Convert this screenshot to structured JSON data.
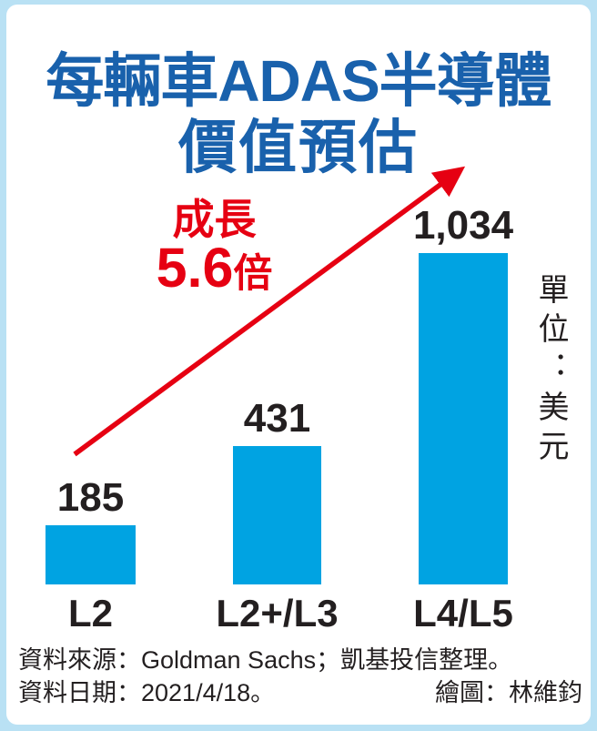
{
  "page": {
    "title_line1": "每輛車ADAS半導體",
    "title_line2": "價值預估"
  },
  "chart_data": {
    "type": "bar",
    "title": "每輛車ADAS半導體價值預估",
    "categories": [
      "L2",
      "L2+/L3",
      "L4/L5"
    ],
    "values": [
      185,
      431,
      1034
    ],
    "value_labels": [
      "185",
      "431",
      "1,034"
    ],
    "unit_label": "單位：美元",
    "ylim": [
      0,
      1100
    ],
    "grid": false,
    "legend": "none",
    "bar_color": "#00a3e2",
    "annotation": {
      "label": "成長",
      "value": "5.6",
      "suffix": "倍",
      "color": "#e60012",
      "arrow": "diagonal red arrow from above first bar to upper right"
    }
  },
  "footer": {
    "source": "資料來源：Goldman Sachs；凱基投信整理。",
    "date": "資料日期：2021/4/18。",
    "credit": "繪圖：林維鈞"
  },
  "colors": {
    "title_blue": "#1961ac",
    "bar_cyan": "#00a3e2",
    "accent_red": "#e60012",
    "frame_light_blue": "#b9e1f4",
    "text_black": "#231f20"
  }
}
